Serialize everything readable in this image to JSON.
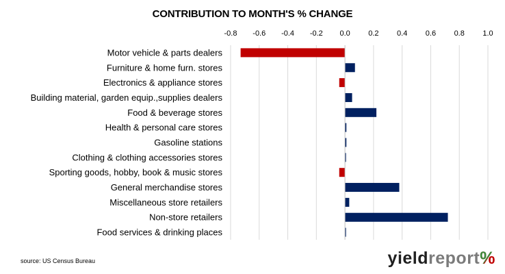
{
  "chart_data": {
    "type": "bar",
    "orientation": "horizontal",
    "title": "CONTRIBUTION TO MONTH'S % CHANGE",
    "categories": [
      "Motor vehicle & parts dealers",
      "Furniture & home furn. stores",
      "Electronics & appliance stores",
      "Building material, garden equip.,supplies dealers",
      "Food & beverage stores",
      "Health & personal care stores",
      "Gasoline stations",
      "Clothing & clothing accessories stores",
      "Sporting goods, hobby, book & music stores",
      "General merchandise stores",
      "Miscellaneous store retailers",
      "Non-store retailers",
      "Food services & drinking places"
    ],
    "values": [
      -0.73,
      0.07,
      -0.04,
      0.05,
      0.22,
      0.01,
      0.01,
      0.005,
      -0.04,
      0.38,
      0.03,
      0.72,
      0.005
    ],
    "xlim": [
      -0.8,
      1.0
    ],
    "xticks": [
      -0.8,
      -0.6,
      -0.4,
      -0.2,
      0.0,
      0.2,
      0.4,
      0.6,
      0.8,
      1.0
    ],
    "xtick_labels": [
      "-0.8",
      "-0.6",
      "-0.4",
      "-0.2",
      "0.0",
      "0.2",
      "0.4",
      "0.6",
      "0.8",
      "1.0"
    ],
    "axis_position": "top",
    "grid": true,
    "legend": false,
    "colors": {
      "positive": "#002060",
      "negative": "#c00000",
      "grid": "#d9d9d9"
    }
  },
  "source": "source: US Census Bureau",
  "brand": {
    "part1": "yield",
    "part2": "report",
    "symbol": "%"
  }
}
